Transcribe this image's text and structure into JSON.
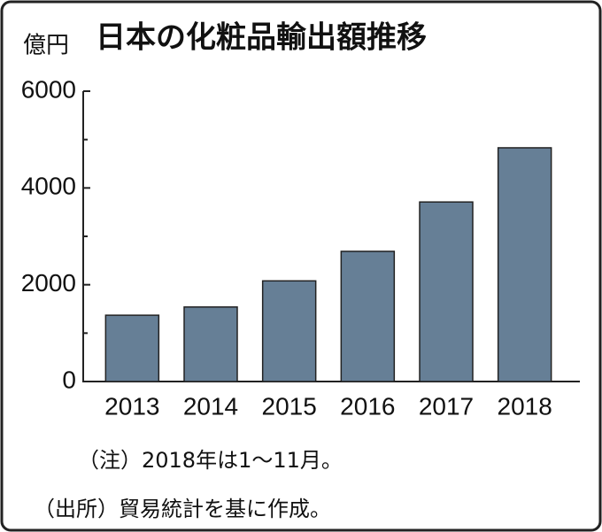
{
  "chart_data": {
    "type": "bar",
    "title": "日本の化粧品輸出額推移",
    "y_axis_label": "億円",
    "categories": [
      "2013",
      "2014",
      "2015",
      "2016",
      "2017",
      "2018"
    ],
    "values": [
      1370,
      1540,
      2080,
      2690,
      3710,
      4830
    ],
    "color": "#667f96",
    "ylim": [
      0,
      6000
    ],
    "yticks": [
      0,
      2000,
      4000,
      6000
    ],
    "minor_yticks": [
      1000,
      3000,
      5000
    ],
    "notes": [
      "（注）2018年は1～11月。",
      "（出所）貿易統計を基に作成。"
    ]
  }
}
